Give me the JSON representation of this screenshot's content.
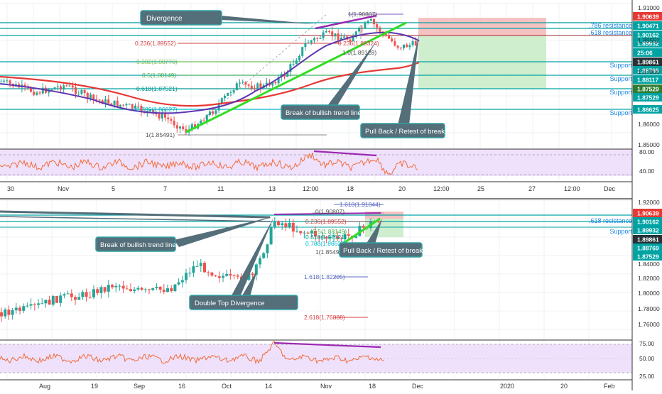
{
  "top_chart": {
    "price_badges": [
      {
        "label": "1.91000",
        "style": "tick"
      },
      {
        "label": "1.90639",
        "style": "red"
      },
      {
        "label": "1.90471",
        "style": "teal"
      },
      {
        "label": "1.90162",
        "style": "teal"
      },
      {
        "label": "1.89932",
        "style": "teal"
      },
      {
        "label": "25:06",
        "style": "teal"
      },
      {
        "label": "1.89861",
        "style": "dark"
      },
      {
        "label": "1.89552",
        "style": "tick"
      },
      {
        "label": "1.88769",
        "style": "teal"
      },
      {
        "label": "1.88117",
        "style": "teal"
      },
      {
        "label": "1.87529",
        "style": "green"
      },
      {
        "label": "1.87529",
        "style": "teal"
      },
      {
        "label": "1.87000",
        "style": "tick"
      },
      {
        "label": "1.86625",
        "style": "teal"
      },
      {
        "label": "1.86000",
        "style": "tick"
      },
      {
        "label": "1.85000",
        "style": "tick"
      }
    ],
    "rsi_ticks": [
      "80.00",
      "40.00"
    ],
    "time_axis": [
      "30",
      "Nov",
      "5",
      "7",
      "11",
      "13",
      "12:00",
      "18",
      "20",
      "12:00",
      "25",
      "27",
      "12:00",
      "Dec"
    ],
    "fib_levels": [
      {
        "label": "1(1.90807)"
      },
      {
        "label": "0.236(1.89552)"
      },
      {
        "label": "0.382(1.88776)"
      },
      {
        "label": "0.5(1.88149)"
      },
      {
        "label": "0.618(1.87521)"
      },
      {
        "label": "0.786(1.86627)"
      },
      {
        "label": "1(1.85491)"
      },
      {
        "label": "1.0(1.89128)"
      },
      {
        "label": "0.236(1.89324)"
      }
    ],
    "line_labels": [
      ".786 resistance",
      ".618 resistance",
      "Support",
      "Support",
      "Support",
      "Support"
    ],
    "callouts": [
      "Divergence",
      "Break of bullish trend line",
      "Pull Back / Retest of break"
    ]
  },
  "bottom_chart": {
    "price_badges": [
      {
        "label": "1.92000",
        "style": "tick"
      },
      {
        "label": "1.90639",
        "style": "red"
      },
      {
        "label": "1.90162",
        "style": "teal"
      },
      {
        "label": "1.89932",
        "style": "teal"
      },
      {
        "label": "1.89861",
        "style": "dark"
      },
      {
        "label": "1.88769",
        "style": "teal"
      },
      {
        "label": "1.87529",
        "style": "teal"
      },
      {
        "label": "1.84000",
        "style": "tick"
      },
      {
        "label": "1.82000",
        "style": "tick"
      },
      {
        "label": "1.80000",
        "style": "tick"
      },
      {
        "label": "1.78000",
        "style": "tick"
      },
      {
        "label": "1.76000",
        "style": "tick"
      }
    ],
    "rsi_ticks": [
      "75.00",
      "50.00",
      "25.00"
    ],
    "time_axis": [
      "Aug",
      "19",
      "Sep",
      "16",
      "Oct",
      "14",
      "Nov",
      "18",
      "Dec",
      "2020",
      "20",
      "Feb"
    ],
    "fib_levels": [
      {
        "label": "1.618(1.91844)"
      },
      {
        "label": "0(1.90807)"
      },
      {
        "label": "0.236(1.89552)"
      },
      {
        "label": "0.5(1.88149)"
      },
      {
        "label": "0.618(1.87521)"
      },
      {
        "label": "0.786(1.86627)"
      },
      {
        "label": "1(1.85491)"
      },
      {
        "label": "1.618(1.82205)"
      },
      {
        "label": "2.618(1.76888)"
      }
    ],
    "line_labels": [
      ".618 resistance",
      "Support"
    ],
    "callouts": [
      "Break of bullish trend line",
      "Pull Back / Retest of break",
      "Double Top Divergence"
    ]
  },
  "chart_data": [
    {
      "type": "candlestick",
      "title": "",
      "timeframe_axis": "30 Oct – Dec",
      "ylim": [
        1.85,
        1.912
      ],
      "last_price": 1.89861,
      "key_levels": {
        "resistance_786": 1.90471,
        "resistance_618": 1.90162,
        "current_zone_top": 1.90639,
        "level_1": 1.89932,
        "support": [
          1.88769,
          1.88117,
          1.87529,
          1.86625
        ]
      },
      "fibonacci": {
        "1": 1.90807,
        "0.236": 1.89552,
        "0.382": 1.88776,
        "0.5": 1.88149,
        "0.618": 1.87521,
        "0.786": 1.86627,
        "0": 1.85491
      },
      "moving_averages": [
        "red (slow)",
        "purple (fast)"
      ],
      "rsi_ylim": [
        20,
        90
      ],
      "rsi_ticks": [
        80,
        40
      ],
      "grid": true
    },
    {
      "type": "candlestick",
      "title": "",
      "timeframe_axis": "Aug – Feb",
      "ylim": [
        1.75,
        1.925
      ],
      "last_price": 1.89861,
      "key_levels": {
        "resistance_618": 1.90162,
        "support": 1.89932
      },
      "fibonacci_extension": {
        "1.618_up": 1.91844,
        "0": 1.90807,
        "0.236": 1.89552,
        "0.5": 1.88149,
        "0.618": 1.87521,
        "0.786": 1.86627,
        "1": 1.85491,
        "1.618": 1.82205,
        "2.618": 1.76888
      },
      "rsi_ylim": [
        20,
        80
      ],
      "rsi_ticks": [
        75,
        50,
        25
      ],
      "grid": true
    }
  ]
}
